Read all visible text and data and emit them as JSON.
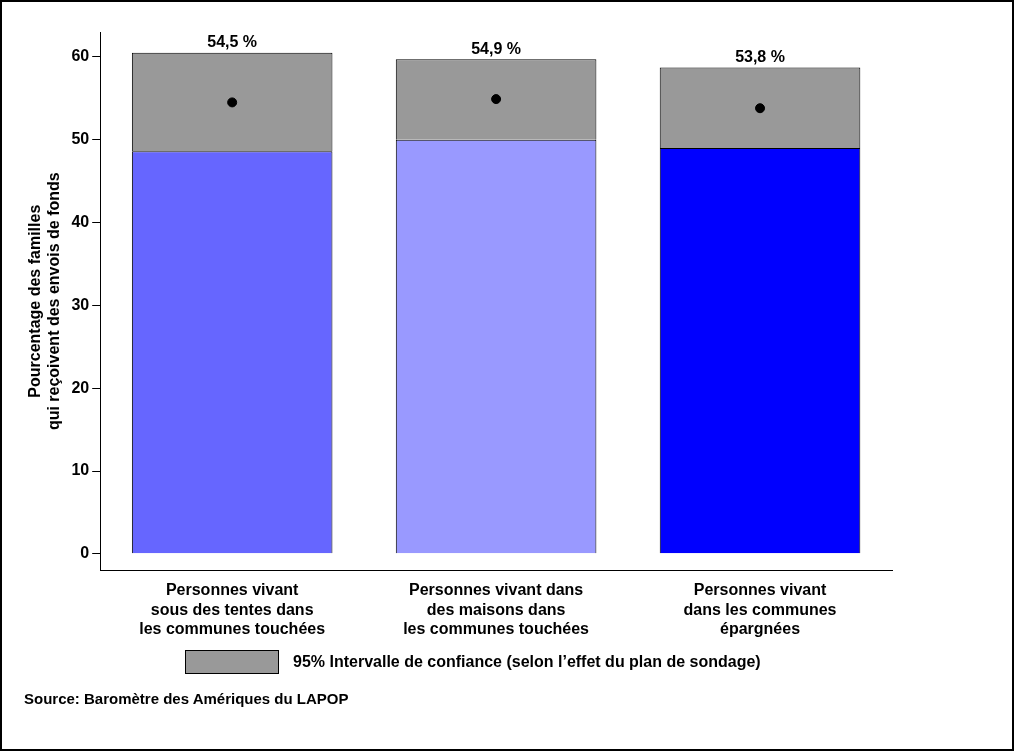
{
  "chart_data": {
    "type": "bar",
    "stacked": true,
    "categories": [
      "Personnes vivant\nsous des tentes dans\nles communes touchées",
      "Personnes vivant dans\ndes maisons dans\nles communes touchées",
      "Personnes vivant\ndans les communes\népargnées"
    ],
    "ylabel": "Pourcentage des familles\nqui reçoivent des envois de fonds",
    "ylim": [
      -2,
      63
    ],
    "yticks": [
      0,
      10,
      20,
      30,
      40,
      50,
      60
    ],
    "grid": false,
    "legend": "bottom",
    "series": [
      {
        "colors": [
          "#6666ff",
          "#9999ff",
          "#0000ff"
        ],
        "values": [
          48.6,
          50.0,
          49.0
        ]
      },
      {
        "name": "95% Intervalle de confiance (selon l’effet du plan de sondage)",
        "color": "#999999",
        "values": [
          11.9,
          9.7,
          9.7
        ]
      },
      {
        "type": "scatter",
        "color": "#000000",
        "marker": "circle",
        "values": [
          54.5,
          54.9,
          53.8
        ],
        "value_labels": [
          "54,5 %",
          "54,9 %",
          "53,8 %"
        ]
      }
    ],
    "annotations": [
      "Source: Baromètre des Amériques du LAPOP"
    ]
  }
}
